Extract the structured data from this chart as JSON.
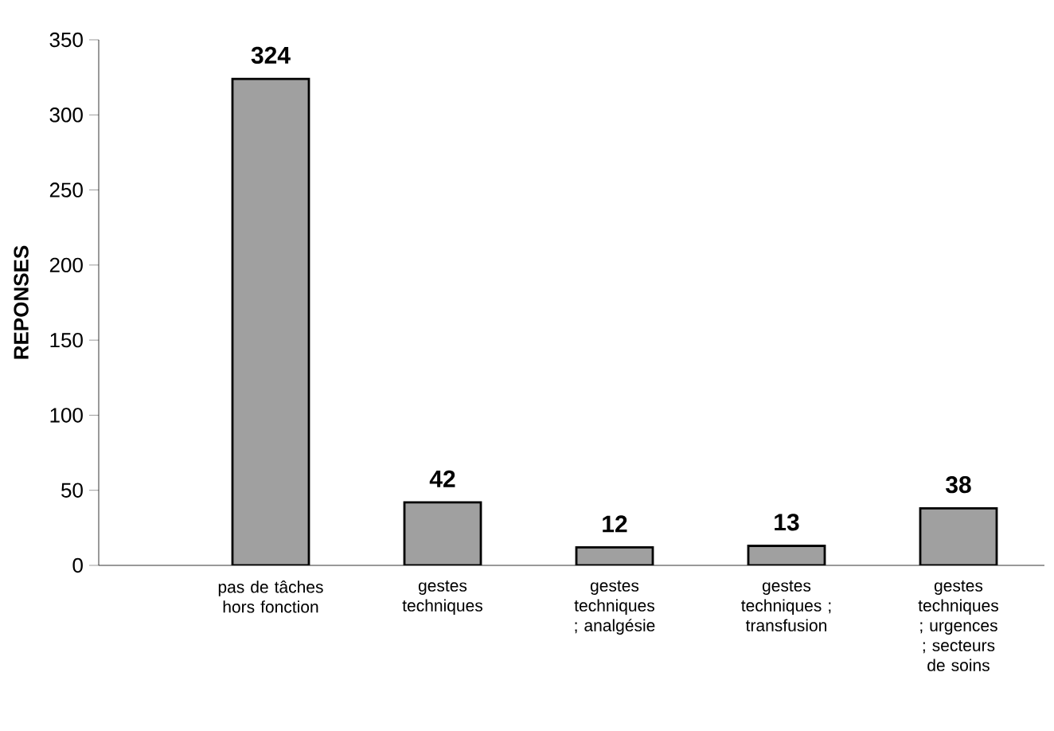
{
  "chart_data": {
    "type": "bar",
    "ylabel": "REPONSES",
    "categories": [
      "pas de tâches hors fonction",
      "gestes techniques",
      "gestes techniques ; analgésie",
      "gestes techniques ; transfusion",
      "gestes techniques ; urgences ; secteurs de soins"
    ],
    "values": [
      324,
      42,
      12,
      13,
      38
    ],
    "color": "#a0a0a0",
    "ylim": [
      0,
      350
    ],
    "yticks": [
      0,
      50,
      100,
      150,
      200,
      250,
      300,
      350
    ],
    "data_labels": true
  }
}
